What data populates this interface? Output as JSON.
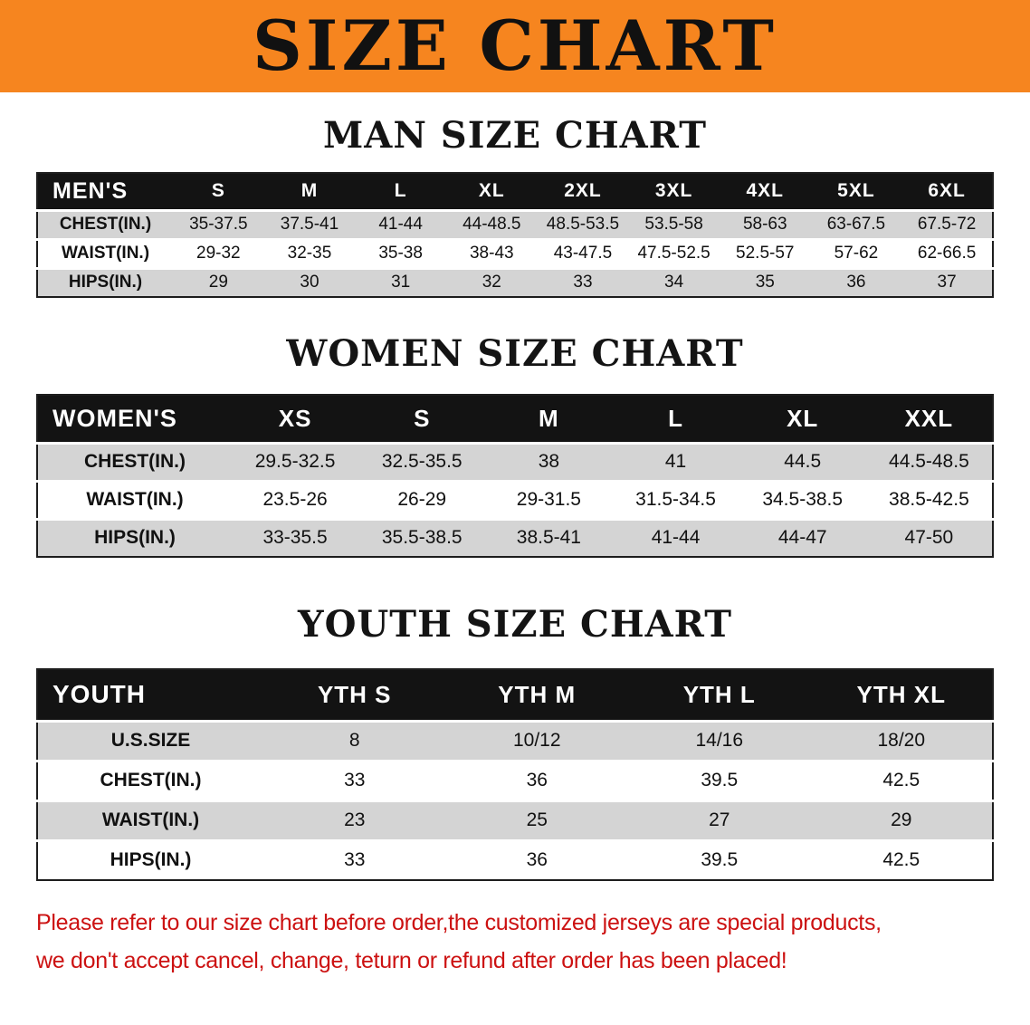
{
  "banner": {
    "title": "SIZE CHART"
  },
  "chart_data": [
    {
      "type": "table",
      "title": "MAN SIZE CHART",
      "corner": "MEN'S",
      "columns": [
        "S",
        "M",
        "L",
        "XL",
        "2XL",
        "3XL",
        "4XL",
        "5XL",
        "6XL"
      ],
      "rows": [
        {
          "label": "CHEST(IN.)",
          "values": [
            "35-37.5",
            "37.5-41",
            "41-44",
            "44-48.5",
            "48.5-53.5",
            "53.5-58",
            "58-63",
            "63-67.5",
            "67.5-72"
          ]
        },
        {
          "label": "WAIST(IN.)",
          "values": [
            "29-32",
            "32-35",
            "35-38",
            "38-43",
            "43-47.5",
            "47.5-52.5",
            "52.5-57",
            "57-62",
            "62-66.5"
          ]
        },
        {
          "label": "HIPS(IN.)",
          "values": [
            "29",
            "30",
            "31",
            "32",
            "33",
            "34",
            "35",
            "36",
            "37"
          ]
        }
      ]
    },
    {
      "type": "table",
      "title": "WOMEN SIZE CHART",
      "corner": "WOMEN'S",
      "columns": [
        "XS",
        "S",
        "M",
        "L",
        "XL",
        "XXL"
      ],
      "rows": [
        {
          "label": "CHEST(IN.)",
          "values": [
            "29.5-32.5",
            "32.5-35.5",
            "38",
            "41",
            "44.5",
            "44.5-48.5"
          ]
        },
        {
          "label": "WAIST(IN.)",
          "values": [
            "23.5-26",
            "26-29",
            "29-31.5",
            "31.5-34.5",
            "34.5-38.5",
            "38.5-42.5"
          ]
        },
        {
          "label": "HIPS(IN.)",
          "values": [
            "33-35.5",
            "35.5-38.5",
            "38.5-41",
            "41-44",
            "44-47",
            "47-50"
          ]
        }
      ]
    },
    {
      "type": "table",
      "title": "YOUTH SIZE CHART",
      "corner": "YOUTH",
      "columns": [
        "YTH S",
        "YTH M",
        "YTH L",
        "YTH XL"
      ],
      "rows": [
        {
          "label": "U.S.SIZE",
          "values": [
            "8",
            "10/12",
            "14/16",
            "18/20"
          ]
        },
        {
          "label": "CHEST(IN.)",
          "values": [
            "33",
            "36",
            "39.5",
            "42.5"
          ]
        },
        {
          "label": "WAIST(IN.)",
          "values": [
            "23",
            "25",
            "27",
            "29"
          ]
        },
        {
          "label": "HIPS(IN.)",
          "values": [
            "33",
            "36",
            "39.5",
            "42.5"
          ]
        }
      ]
    }
  ],
  "footer": {
    "line1": "Please refer to our size chart before order,the customized jerseys are special products,",
    "line2": "we don't accept cancel, change, teturn or refund after order has been placed!"
  },
  "colors": {
    "banner_orange": "#f6851f",
    "header_black": "#131313",
    "stripe_gray": "#d4d4d4",
    "notice_red": "#cc1111"
  }
}
